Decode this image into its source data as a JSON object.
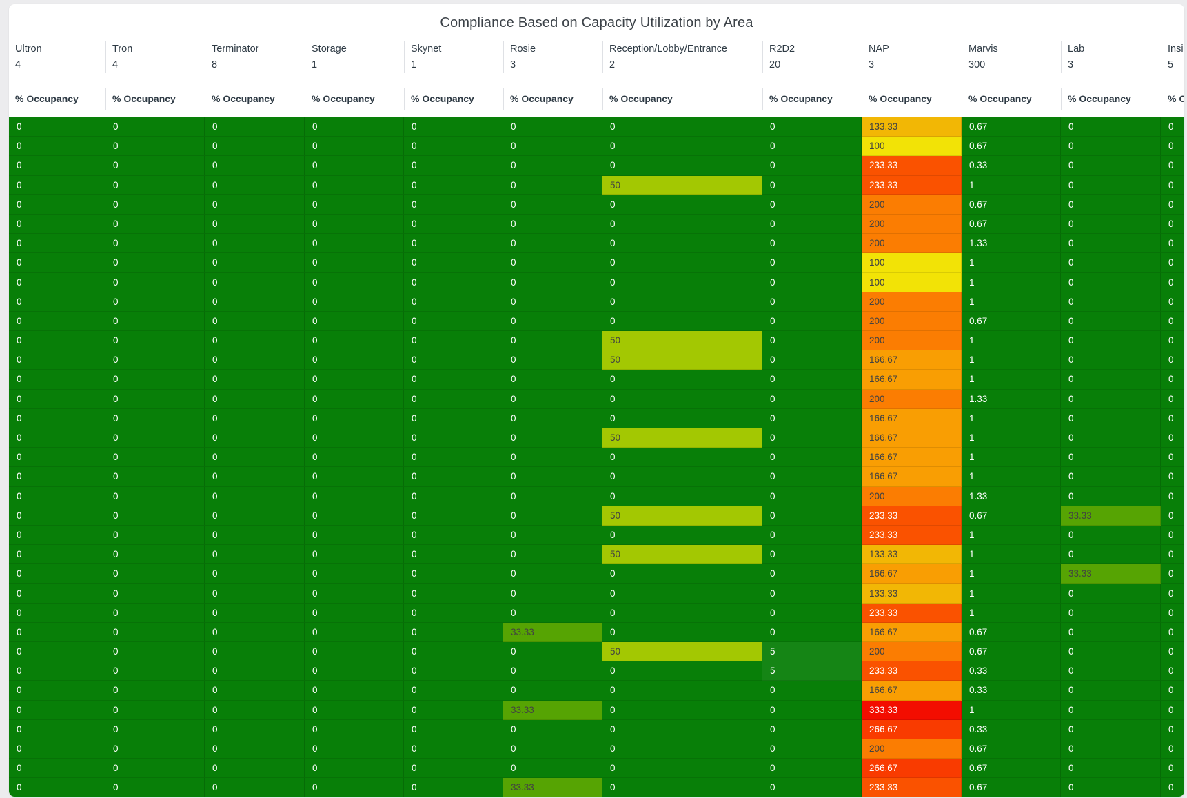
{
  "page": {
    "background": "#ececee",
    "card_background": "#ffffff"
  },
  "title": "Compliance Based on Capacity Utilization by Area",
  "occupancy_label": "% Occupancy",
  "chart_data": {
    "type": "heatmap",
    "title": "Compliance Based on Capacity Utilization by Area",
    "metric_label": "% Occupancy",
    "columns": [
      {
        "name": "Ultron",
        "capacity": "4"
      },
      {
        "name": "Tron",
        "capacity": "4"
      },
      {
        "name": "Terminator",
        "capacity": "8"
      },
      {
        "name": "Storage",
        "capacity": "1"
      },
      {
        "name": "Skynet",
        "capacity": "1"
      },
      {
        "name": "Rosie",
        "capacity": "3"
      },
      {
        "name": "Reception/Lobby/Entrance",
        "capacity": "2"
      },
      {
        "name": "R2D2",
        "capacity": "20"
      },
      {
        "name": "NAP",
        "capacity": "3"
      },
      {
        "name": "Marvis",
        "capacity": "300"
      },
      {
        "name": "Lab",
        "capacity": "3"
      },
      {
        "name": "Inside",
        "capacity": "5"
      }
    ],
    "rows": [
      [
        "0",
        "0",
        "0",
        "0",
        "0",
        "0",
        "0",
        "0",
        "133.33",
        "0.67",
        "0",
        "0"
      ],
      [
        "0",
        "0",
        "0",
        "0",
        "0",
        "0",
        "0",
        "0",
        "100",
        "0.67",
        "0",
        "0"
      ],
      [
        "0",
        "0",
        "0",
        "0",
        "0",
        "0",
        "0",
        "0",
        "233.33",
        "0.33",
        "0",
        "0"
      ],
      [
        "0",
        "0",
        "0",
        "0",
        "0",
        "0",
        "50",
        "0",
        "233.33",
        "1",
        "0",
        "0"
      ],
      [
        "0",
        "0",
        "0",
        "0",
        "0",
        "0",
        "0",
        "0",
        "200",
        "0.67",
        "0",
        "0"
      ],
      [
        "0",
        "0",
        "0",
        "0",
        "0",
        "0",
        "0",
        "0",
        "200",
        "0.67",
        "0",
        "0"
      ],
      [
        "0",
        "0",
        "0",
        "0",
        "0",
        "0",
        "0",
        "0",
        "200",
        "1.33",
        "0",
        "0"
      ],
      [
        "0",
        "0",
        "0",
        "0",
        "0",
        "0",
        "0",
        "0",
        "100",
        "1",
        "0",
        "0"
      ],
      [
        "0",
        "0",
        "0",
        "0",
        "0",
        "0",
        "0",
        "0",
        "100",
        "1",
        "0",
        "0"
      ],
      [
        "0",
        "0",
        "0",
        "0",
        "0",
        "0",
        "0",
        "0",
        "200",
        "1",
        "0",
        "0"
      ],
      [
        "0",
        "0",
        "0",
        "0",
        "0",
        "0",
        "0",
        "0",
        "200",
        "0.67",
        "0",
        "0"
      ],
      [
        "0",
        "0",
        "0",
        "0",
        "0",
        "0",
        "50",
        "0",
        "200",
        "1",
        "0",
        "0"
      ],
      [
        "0",
        "0",
        "0",
        "0",
        "0",
        "0",
        "50",
        "0",
        "166.67",
        "1",
        "0",
        "0"
      ],
      [
        "0",
        "0",
        "0",
        "0",
        "0",
        "0",
        "0",
        "0",
        "166.67",
        "1",
        "0",
        "0"
      ],
      [
        "0",
        "0",
        "0",
        "0",
        "0",
        "0",
        "0",
        "0",
        "200",
        "1.33",
        "0",
        "0"
      ],
      [
        "0",
        "0",
        "0",
        "0",
        "0",
        "0",
        "0",
        "0",
        "166.67",
        "1",
        "0",
        "0"
      ],
      [
        "0",
        "0",
        "0",
        "0",
        "0",
        "0",
        "50",
        "0",
        "166.67",
        "1",
        "0",
        "0"
      ],
      [
        "0",
        "0",
        "0",
        "0",
        "0",
        "0",
        "0",
        "0",
        "166.67",
        "1",
        "0",
        "0"
      ],
      [
        "0",
        "0",
        "0",
        "0",
        "0",
        "0",
        "0",
        "0",
        "166.67",
        "1",
        "0",
        "0"
      ],
      [
        "0",
        "0",
        "0",
        "0",
        "0",
        "0",
        "0",
        "0",
        "200",
        "1.33",
        "0",
        "0"
      ],
      [
        "0",
        "0",
        "0",
        "0",
        "0",
        "0",
        "50",
        "0",
        "233.33",
        "0.67",
        "33.33",
        "0"
      ],
      [
        "0",
        "0",
        "0",
        "0",
        "0",
        "0",
        "0",
        "0",
        "233.33",
        "1",
        "0",
        "0"
      ],
      [
        "0",
        "0",
        "0",
        "0",
        "0",
        "0",
        "50",
        "0",
        "133.33",
        "1",
        "0",
        "0"
      ],
      [
        "0",
        "0",
        "0",
        "0",
        "0",
        "0",
        "0",
        "0",
        "166.67",
        "1",
        "33.33",
        "0"
      ],
      [
        "0",
        "0",
        "0",
        "0",
        "0",
        "0",
        "0",
        "0",
        "133.33",
        "1",
        "0",
        "0"
      ],
      [
        "0",
        "0",
        "0",
        "0",
        "0",
        "0",
        "0",
        "0",
        "233.33",
        "1",
        "0",
        "0"
      ],
      [
        "0",
        "0",
        "0",
        "0",
        "0",
        "33.33",
        "0",
        "0",
        "166.67",
        "0.67",
        "0",
        "0"
      ],
      [
        "0",
        "0",
        "0",
        "0",
        "0",
        "0",
        "50",
        "5",
        "200",
        "0.67",
        "0",
        "0"
      ],
      [
        "0",
        "0",
        "0",
        "0",
        "0",
        "0",
        "0",
        "5",
        "233.33",
        "0.33",
        "0",
        "0"
      ],
      [
        "0",
        "0",
        "0",
        "0",
        "0",
        "0",
        "0",
        "0",
        "166.67",
        "0.33",
        "0",
        "0"
      ],
      [
        "0",
        "0",
        "0",
        "0",
        "0",
        "33.33",
        "0",
        "0",
        "333.33",
        "1",
        "0",
        "0"
      ],
      [
        "0",
        "0",
        "0",
        "0",
        "0",
        "0",
        "0",
        "0",
        "266.67",
        "0.33",
        "0",
        "0"
      ],
      [
        "0",
        "0",
        "0",
        "0",
        "0",
        "0",
        "0",
        "0",
        "200",
        "0.67",
        "0",
        "0"
      ],
      [
        "0",
        "0",
        "0",
        "0",
        "0",
        "0",
        "0",
        "0",
        "266.67",
        "0.67",
        "0",
        "0"
      ],
      [
        "0",
        "0",
        "0",
        "0",
        "0",
        "33.33",
        "0",
        "0",
        "233.33",
        "0.67",
        "0",
        "0"
      ]
    ],
    "color_scale": {
      "0": "#087f08",
      "5": "#158515",
      "33.33": "#56a403",
      "50": "#a3c802",
      "100": "#f2e306",
      "133.33": "#f2b705",
      "166.67": "#f99e03",
      "200": "#fb7d02",
      "233.33": "#fa5200",
      "266.67": "#f93b00",
      "333.33": "#f30d00"
    },
    "dark_text_values": [
      "33.33",
      "50",
      "100",
      "133.33",
      "166.67",
      "200"
    ],
    "dark_text_color": "#424242",
    "light_text_color": "#ffffff",
    "legend_position": "none",
    "grid": true
  }
}
